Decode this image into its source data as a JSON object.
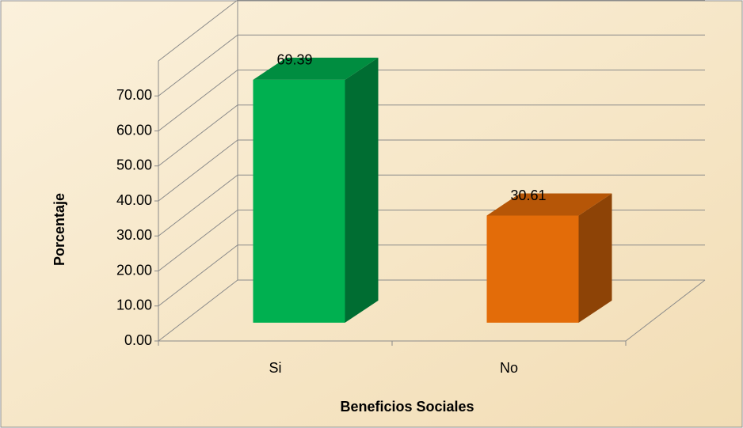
{
  "chart_data": {
    "type": "bar3d",
    "x_label": "Beneficios Sociales",
    "y_label": "Porcentaje",
    "categories": [
      "Si",
      "No"
    ],
    "values": [
      69.39,
      30.61
    ],
    "colors": [
      "#00b050",
      "#e36c09"
    ],
    "ylim": [
      0,
      80
    ],
    "yticks": [
      {
        "value": 0,
        "label": "0.00"
      },
      {
        "value": 10,
        "label": "10.00"
      },
      {
        "value": 20,
        "label": "20.00"
      },
      {
        "value": 30,
        "label": "30.00"
      },
      {
        "value": 40,
        "label": "40.00"
      },
      {
        "value": 50,
        "label": "50.00"
      },
      {
        "value": 60,
        "label": "60.00"
      },
      {
        "value": 70,
        "label": "70.00"
      }
    ],
    "grid": true
  }
}
